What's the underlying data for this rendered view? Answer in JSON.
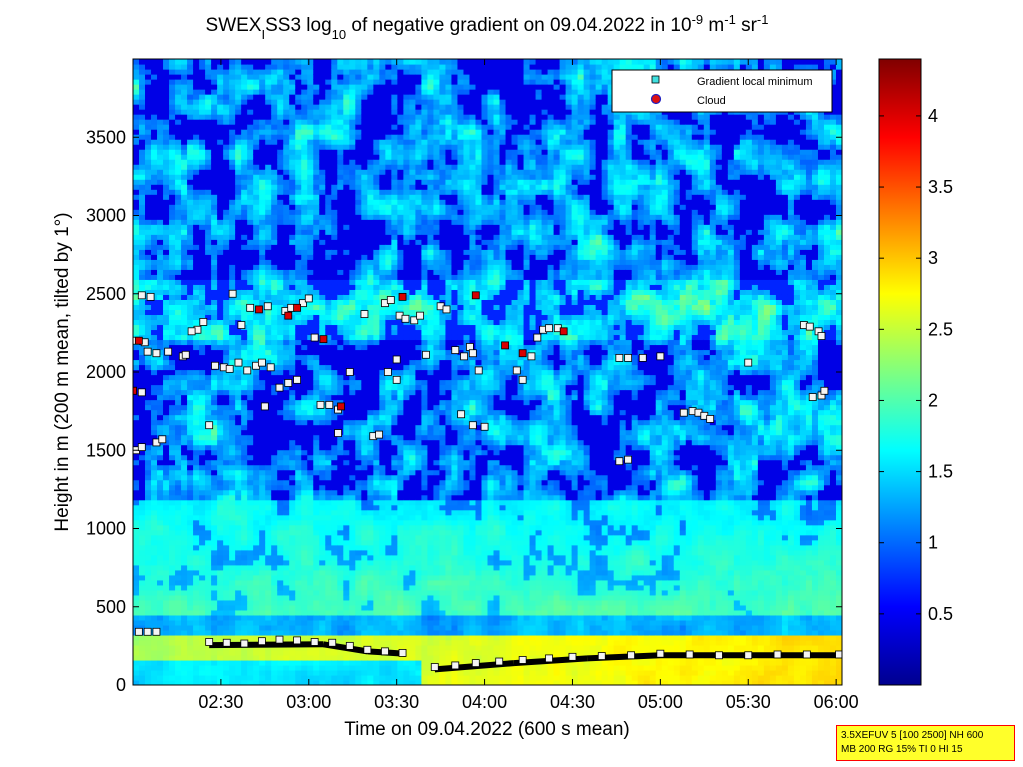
{
  "chart_data": {
    "type": "heatmap",
    "title": {
      "prefix": "SWEX",
      "sub1": "I",
      "mid1": "SS3 log",
      "sub2": "10",
      "mid2": " of negative gradient on 09.04.2022 in 10",
      "sup1": "-9",
      "mid3": " m",
      "sup2": "-1",
      "mid4": " sr",
      "sup3": "-1"
    },
    "xlabel": "Time on 09.04.2022 (600 s mean)",
    "ylabel": "Height in m (200 m mean, tilted by 1°)",
    "xlim": [
      "02:00",
      "06:02"
    ],
    "ylim": [
      0,
      4000
    ],
    "x_ticks": [
      "02:30",
      "03:00",
      "03:30",
      "04:00",
      "04:30",
      "05:00",
      "05:30",
      "06:00"
    ],
    "y_ticks": [
      0,
      500,
      1000,
      1500,
      2000,
      2500,
      3000,
      3500
    ],
    "colorbar": {
      "colormap": "jet",
      "range": [
        0,
        4.4
      ],
      "ticks": [
        0.5,
        1,
        1.5,
        2,
        2.5,
        3,
        3.5,
        4
      ]
    },
    "legend": {
      "placement": "top-right",
      "entries": [
        {
          "label": "Gradient local minimum",
          "marker": "square",
          "color": "#40e0e0"
        },
        {
          "label": "Cloud",
          "marker": "circle",
          "color": "#dd1010"
        }
      ]
    },
    "gradient_minima": [
      [
        "02:02",
        340
      ],
      [
        "02:05",
        340
      ],
      [
        "02:08",
        340
      ],
      [
        "02:00",
        1880
      ],
      [
        "02:03",
        1870
      ],
      [
        "02:01",
        1500
      ],
      [
        "02:03",
        1520
      ],
      [
        "02:08",
        1550
      ],
      [
        "02:10",
        1570
      ],
      [
        "02:01",
        2200
      ],
      [
        "02:04",
        2190
      ],
      [
        "02:05",
        2130
      ],
      [
        "02:08",
        2120
      ],
      [
        "02:12",
        2130
      ],
      [
        "02:03",
        2490
      ],
      [
        "02:06",
        2480
      ],
      [
        "02:17",
        2100
      ],
      [
        "02:18",
        2110
      ],
      [
        "02:22",
        2270
      ],
      [
        "02:24",
        2320
      ],
      [
        "02:20",
        2260
      ],
      [
        "02:28",
        2040
      ],
      [
        "02:31",
        2030
      ],
      [
        "02:33",
        2020
      ],
      [
        "02:36",
        2060
      ],
      [
        "02:39",
        2010
      ],
      [
        "02:42",
        2040
      ],
      [
        "02:44",
        2060
      ],
      [
        "02:47",
        2030
      ],
      [
        "02:34",
        2500
      ],
      [
        "02:37",
        2300
      ],
      [
        "02:40",
        2410
      ],
      [
        "02:46",
        2420
      ],
      [
        "02:26",
        1660
      ],
      [
        "02:45",
        1780
      ],
      [
        "02:50",
        1900
      ],
      [
        "02:53",
        1930
      ],
      [
        "02:56",
        1950
      ],
      [
        "02:52",
        2390
      ],
      [
        "02:54",
        2410
      ],
      [
        "02:58",
        2440
      ],
      [
        "03:00",
        2470
      ],
      [
        "03:02",
        2220
      ],
      [
        "03:04",
        1790
      ],
      [
        "03:07",
        1790
      ],
      [
        "03:10",
        1760
      ],
      [
        "03:10",
        1610
      ],
      [
        "03:14",
        2000
      ],
      [
        "03:19",
        2370
      ],
      [
        "03:22",
        1590
      ],
      [
        "03:24",
        1600
      ],
      [
        "03:27",
        2000
      ],
      [
        "03:26",
        2440
      ],
      [
        "03:28",
        2460
      ],
      [
        "03:31",
        2360
      ],
      [
        "03:33",
        2340
      ],
      [
        "03:36",
        2330
      ],
      [
        "03:38",
        2360
      ],
      [
        "03:30",
        1950
      ],
      [
        "03:30",
        2080
      ],
      [
        "03:40",
        2110
      ],
      [
        "03:45",
        2420
      ],
      [
        "03:47",
        2400
      ],
      [
        "03:50",
        2140
      ],
      [
        "03:53",
        2100
      ],
      [
        "03:55",
        2160
      ],
      [
        "03:56",
        2120
      ],
      [
        "03:58",
        2010
      ],
      [
        "03:52",
        1730
      ],
      [
        "03:56",
        1660
      ],
      [
        "04:00",
        1650
      ],
      [
        "04:11",
        2010
      ],
      [
        "04:13",
        1950
      ],
      [
        "04:16",
        2100
      ],
      [
        "04:18",
        2220
      ],
      [
        "04:20",
        2270
      ],
      [
        "04:22",
        2280
      ],
      [
        "04:25",
        2280
      ],
      [
        "04:46",
        2090
      ],
      [
        "04:49",
        2090
      ],
      [
        "04:46",
        1430
      ],
      [
        "04:49",
        1440
      ],
      [
        "04:54",
        2090
      ],
      [
        "05:00",
        2100
      ],
      [
        "05:08",
        1740
      ],
      [
        "05:11",
        1750
      ],
      [
        "05:13",
        1740
      ],
      [
        "05:15",
        1720
      ],
      [
        "05:17",
        1700
      ],
      [
        "05:30",
        2060
      ],
      [
        "05:49",
        2300
      ],
      [
        "05:51",
        2290
      ],
      [
        "05:54",
        2260
      ],
      [
        "05:55",
        2230
      ],
      [
        "05:52",
        1840
      ],
      [
        "05:55",
        1850
      ],
      [
        "05:56",
        1880
      ],
      [
        "02:26",
        275
      ],
      [
        "02:32",
        270
      ],
      [
        "02:38",
        265
      ],
      [
        "02:44",
        280
      ],
      [
        "02:50",
        290
      ],
      [
        "02:56",
        285
      ],
      [
        "03:02",
        275
      ],
      [
        "03:08",
        270
      ],
      [
        "03:14",
        250
      ],
      [
        "03:20",
        225
      ],
      [
        "03:26",
        215
      ],
      [
        "03:32",
        205
      ],
      [
        "03:43",
        115
      ],
      [
        "03:50",
        125
      ],
      [
        "03:57",
        140
      ],
      [
        "04:05",
        150
      ],
      [
        "04:13",
        160
      ],
      [
        "04:22",
        170
      ],
      [
        "04:30",
        180
      ],
      [
        "04:40",
        185
      ],
      [
        "04:50",
        190
      ],
      [
        "05:00",
        200
      ],
      [
        "05:10",
        195
      ],
      [
        "05:20",
        190
      ],
      [
        "05:30",
        190
      ],
      [
        "05:40",
        195
      ],
      [
        "05:50",
        195
      ],
      [
        "06:01",
        195
      ]
    ],
    "clouds": [
      [
        "02:00",
        1880
      ],
      [
        "02:02",
        2200
      ],
      [
        "02:43",
        2400
      ],
      [
        "02:53",
        2360
      ],
      [
        "02:56",
        2410
      ],
      [
        "03:05",
        2210
      ],
      [
        "03:11",
        1780
      ],
      [
        "03:32",
        2480
      ],
      [
        "03:57",
        2490
      ],
      [
        "04:07",
        2170
      ],
      [
        "04:13",
        2120
      ],
      [
        "04:27",
        2260
      ]
    ]
  },
  "stamp": {
    "line1": "3.5XEFUV 5 [100 2500] NH 600",
    "line2": "MB 200 RG 15% TI 0 HI 15"
  }
}
